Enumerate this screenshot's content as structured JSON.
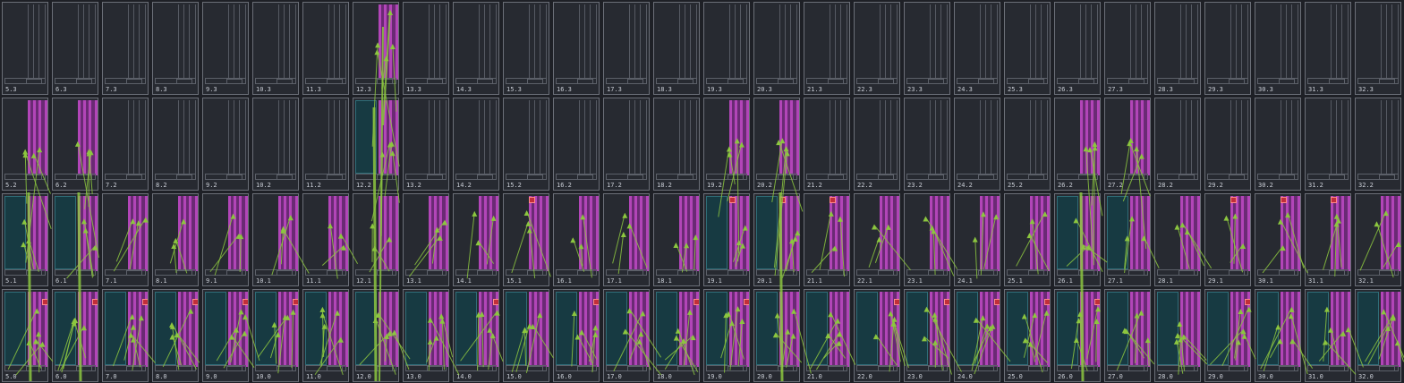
{
  "columns": [
    "5",
    "6",
    "7",
    "8",
    "9",
    "10",
    "11",
    "12",
    "13",
    "14",
    "15",
    "16",
    "17",
    "18",
    "19",
    "20",
    "21",
    "22",
    "23",
    "24",
    "25",
    "26",
    "27",
    "28",
    "29",
    "30",
    "31",
    "32"
  ],
  "rows": [
    "3",
    "2",
    "1",
    "0"
  ],
  "active_cells": {
    "12.3": true,
    "5.2": true,
    "6.2": true,
    "12.2": true,
    "19.2": true,
    "20.2": true,
    "26.2": true,
    "27.2": true
  },
  "panel_cells": {
    "12.2": true,
    "5.1": true,
    "6.1": true,
    "19.1": true,
    "20.1": true,
    "26.1": true,
    "27.1": true
  },
  "marker_cells": [
    "15.1",
    "19.1",
    "20.1",
    "21.1",
    "29.1",
    "30.1",
    "31.1",
    "5.0",
    "6.0",
    "7.0",
    "8.0",
    "9.0",
    "10.0",
    "14.0",
    "16.0",
    "18.0",
    "19.0",
    "22.0",
    "23.0",
    "24.0",
    "25.0",
    "26.0",
    "29.0"
  ],
  "colors": {
    "background": "#1e2026",
    "cell": "#272a31",
    "lane_active": "#b245b8",
    "panel": "#173a42",
    "link": "#8cc63f",
    "marker": "#c12e3a"
  }
}
